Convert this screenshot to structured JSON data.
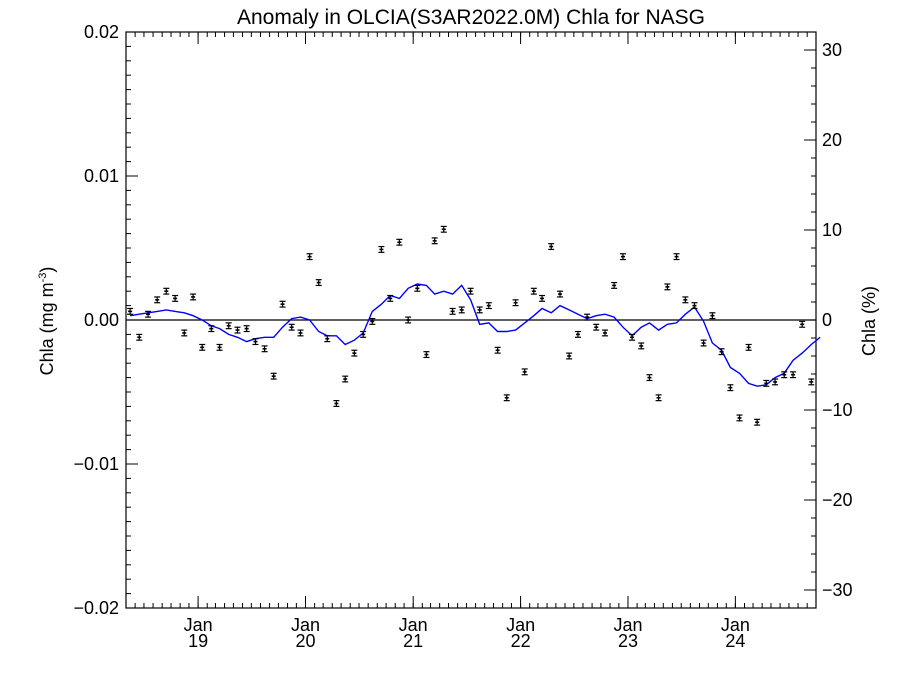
{
  "chart_data": {
    "type": "scatter",
    "title": "Anomaly in OLCIA(S3AR2022.0M) Chla for NASG",
    "ylabel": "Chla (mg m",
    "ylabel_unit_superscript": "-3",
    "ylabel_close": ")",
    "y2label": "Chla (%)",
    "ylim": [
      -0.02,
      0.02
    ],
    "y2lim": [
      -32,
      32
    ],
    "y_ticks": [
      "0.02",
      "0.01",
      "0.00",
      "-0.01",
      "-0.02"
    ],
    "y_tick_values": [
      0.02,
      0.01,
      0.0,
      -0.01,
      -0.02
    ],
    "y2_ticks": [
      "30",
      "20",
      "10",
      "0",
      "-10",
      "-20",
      "-30"
    ],
    "y2_tick_values": [
      30,
      20,
      10,
      0,
      -10,
      -20,
      -30
    ],
    "xlim": [
      "2018-05-01",
      "2024-10-01"
    ],
    "x_ticks": [
      {
        "month": "Jan",
        "year": "19",
        "date": "2019-01-01"
      },
      {
        "month": "Jan",
        "year": "20",
        "date": "2020-01-01"
      },
      {
        "month": "Jan",
        "year": "21",
        "date": "2021-01-01"
      },
      {
        "month": "Jan",
        "year": "22",
        "date": "2022-01-01"
      },
      {
        "month": "Jan",
        "year": "23",
        "date": "2023-01-01"
      },
      {
        "month": "Jan",
        "year": "24",
        "date": "2024-01-01"
      }
    ],
    "zero_line": true,
    "grid": false,
    "colors": {
      "points": "#000000",
      "smoothed": "#0000ff",
      "axes": "#000000"
    },
    "series": [
      {
        "kind": "monthly anomaly with error bars",
        "x": [
          "2018-05",
          "2018-06",
          "2018-07",
          "2018-08",
          "2018-09",
          "2018-10",
          "2018-11",
          "2018-12",
          "2019-01",
          "2019-02",
          "2019-03",
          "2019-04",
          "2019-05",
          "2019-06",
          "2019-07",
          "2019-08",
          "2019-09",
          "2019-10",
          "2019-11",
          "2019-12",
          "2020-01",
          "2020-02",
          "2020-03",
          "2020-04",
          "2020-05",
          "2020-06",
          "2020-07",
          "2020-08",
          "2020-09",
          "2020-10",
          "2020-11",
          "2020-12",
          "2021-01",
          "2021-02",
          "2021-03",
          "2021-04",
          "2021-05",
          "2021-06",
          "2021-07",
          "2021-08",
          "2021-09",
          "2021-10",
          "2021-11",
          "2021-12",
          "2022-01",
          "2022-02",
          "2022-03",
          "2022-04",
          "2022-05",
          "2022-06",
          "2022-07",
          "2022-08",
          "2022-09",
          "2022-10",
          "2022-11",
          "2022-12",
          "2023-01",
          "2023-02",
          "2023-03",
          "2023-04",
          "2023-05",
          "2023-06",
          "2023-07",
          "2023-08",
          "2023-09",
          "2023-10",
          "2023-11",
          "2023-12",
          "2024-01",
          "2024-02",
          "2024-03",
          "2024-04",
          "2024-05",
          "2024-06",
          "2024-07",
          "2024-08",
          "2024-09"
        ],
        "y": [
          0.0006,
          -0.0012,
          0.0004,
          0.0014,
          0.002,
          0.0015,
          -0.0009,
          0.0016,
          -0.0019,
          -0.0006,
          -0.0019,
          -0.0004,
          -0.0007,
          -0.0006,
          -0.0015,
          -0.002,
          -0.0039,
          0.0011,
          -0.0005,
          -0.0009,
          0.0044,
          0.0026,
          -0.0013,
          -0.0058,
          -0.0041,
          -0.0023,
          -0.001,
          -0.0001,
          0.0049,
          0.0015,
          0.0054,
          0.0,
          0.0022,
          -0.0024,
          0.0055,
          0.0063,
          0.0006,
          0.0007,
          0.002,
          0.0007,
          0.001,
          -0.0021,
          -0.0054,
          0.0012,
          -0.0036,
          0.002,
          0.0015,
          0.0051,
          0.0018,
          -0.0025,
          -0.001,
          0.0002,
          -0.0005,
          -0.0009,
          0.0024,
          0.0044,
          -0.0012,
          -0.0018,
          -0.004,
          -0.0054,
          0.0023,
          0.0044,
          0.0014,
          0.001,
          -0.0016,
          0.0003,
          -0.0022,
          -0.0047,
          -0.0068,
          -0.0019,
          -0.0071,
          -0.0044,
          -0.0043,
          -0.0038,
          -0.0038,
          -0.0003,
          -0.0043
        ],
        "err": 0.0002
      },
      {
        "kind": "smoothed running mean",
        "x": [
          "2018-05",
          "2018-06",
          "2018-07",
          "2018-08",
          "2018-09",
          "2018-10",
          "2018-11",
          "2018-12",
          "2019-01",
          "2019-02",
          "2019-03",
          "2019-04",
          "2019-05",
          "2019-06",
          "2019-07",
          "2019-08",
          "2019-09",
          "2019-10",
          "2019-11",
          "2019-12",
          "2020-01",
          "2020-02",
          "2020-03",
          "2020-04",
          "2020-05",
          "2020-06",
          "2020-07",
          "2020-08",
          "2020-09",
          "2020-10",
          "2020-11",
          "2020-12",
          "2021-01",
          "2021-02",
          "2021-03",
          "2021-04",
          "2021-05",
          "2021-06",
          "2021-07",
          "2021-08",
          "2021-09",
          "2021-10",
          "2021-11",
          "2021-12",
          "2022-01",
          "2022-02",
          "2022-03",
          "2022-04",
          "2022-05",
          "2022-06",
          "2022-07",
          "2022-08",
          "2022-09",
          "2022-10",
          "2022-11",
          "2022-12",
          "2023-01",
          "2023-02",
          "2023-03",
          "2023-04",
          "2023-05",
          "2023-06",
          "2023-07",
          "2023-08",
          "2023-09",
          "2023-10",
          "2023-11",
          "2023-12",
          "2024-01",
          "2024-02",
          "2024-03",
          "2024-04",
          "2024-05",
          "2024-06",
          "2024-07",
          "2024-08",
          "2024-09",
          "2024-10"
        ],
        "y": [
          0.0003,
          0.0004,
          0.0005,
          0.0006,
          0.0007,
          0.0006,
          0.0005,
          0.0003,
          0.0,
          -0.0004,
          -0.0006,
          -0.001,
          -0.0012,
          -0.0015,
          -0.0013,
          -0.0012,
          -0.0012,
          -0.0005,
          0.0001,
          0.0002,
          0.0,
          -0.0008,
          -0.0011,
          -0.0011,
          -0.0017,
          -0.0014,
          -0.0009,
          0.0006,
          0.0011,
          0.0017,
          0.0015,
          0.0022,
          0.0025,
          0.0024,
          0.0018,
          0.002,
          0.0018,
          0.0024,
          0.0014,
          -0.0003,
          -0.0002,
          -0.0008,
          -0.0008,
          -0.0007,
          -0.0002,
          0.0003,
          0.0008,
          0.0005,
          0.001,
          0.0007,
          0.0004,
          0.0001,
          0.0003,
          0.0004,
          0.0002,
          -0.0005,
          -0.0011,
          -0.0005,
          -0.0002,
          -0.0007,
          -0.0003,
          -0.0002,
          0.0004,
          0.0009,
          -0.0001,
          -0.0016,
          -0.0021,
          -0.0033,
          -0.0037,
          -0.0044,
          -0.0046,
          -0.0045,
          -0.004,
          -0.0037,
          -0.0028,
          -0.0023,
          -0.0017,
          -0.0012
        ]
      }
    ]
  }
}
